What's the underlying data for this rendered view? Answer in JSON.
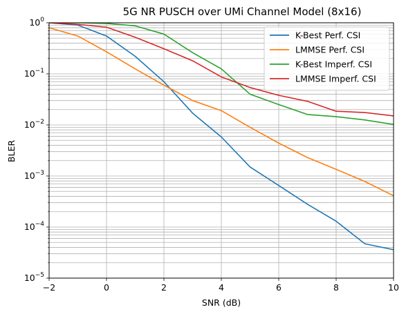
{
  "chart_data": {
    "type": "line",
    "title": "5G NR PUSCH over UMi Channel Model (8x16)",
    "xlabel": "SNR (dB)",
    "ylabel": "BLER",
    "xlim": [
      -2,
      10
    ],
    "ylim": [
      1e-05,
      1
    ],
    "yscale": "log",
    "grid": true,
    "grid_minor": true,
    "legend_position": "top-right",
    "x_ticks": [
      -2,
      0,
      2,
      4,
      6,
      8,
      10
    ],
    "x_tick_labels": [
      "−2",
      "0",
      "2",
      "4",
      "6",
      "8",
      "10"
    ],
    "y_ticks": [
      1e-05,
      0.0001,
      0.001,
      0.01,
      0.1,
      1
    ],
    "y_tick_exponents": [
      "−5",
      "−4",
      "−3",
      "−2",
      "−1",
      "0"
    ],
    "y_tick_base": "10",
    "x": [
      -2,
      -1,
      0,
      1,
      2,
      3,
      4,
      5,
      6,
      7,
      8,
      9,
      10
    ],
    "series": [
      {
        "name": "K-Best Perf. CSI",
        "color": "#1f77b4",
        "values": [
          1.0,
          0.9,
          0.55,
          0.22,
          0.07,
          0.017,
          0.0058,
          0.0015,
          0.00065,
          0.00028,
          0.00013,
          4.7e-05,
          3.6e-05
        ]
      },
      {
        "name": "LMMSE Perf. CSI",
        "color": "#ff7f0e",
        "values": [
          0.8,
          0.55,
          0.27,
          0.125,
          0.06,
          0.03,
          0.019,
          0.009,
          0.0044,
          0.0023,
          0.00135,
          0.00078,
          0.00041
        ]
      },
      {
        "name": "K-Best Imperf. CSI",
        "color": "#2ca02c",
        "values": [
          1.0,
          1.0,
          0.97,
          0.87,
          0.6,
          0.26,
          0.125,
          0.04,
          0.025,
          0.016,
          0.0145,
          0.0125,
          0.0102
        ]
      },
      {
        "name": "LMMSE Imperf. CSI",
        "color": "#d62728",
        "values": [
          1.0,
          0.93,
          0.82,
          0.52,
          0.31,
          0.18,
          0.087,
          0.054,
          0.038,
          0.029,
          0.0185,
          0.0175,
          0.015
        ]
      }
    ]
  }
}
